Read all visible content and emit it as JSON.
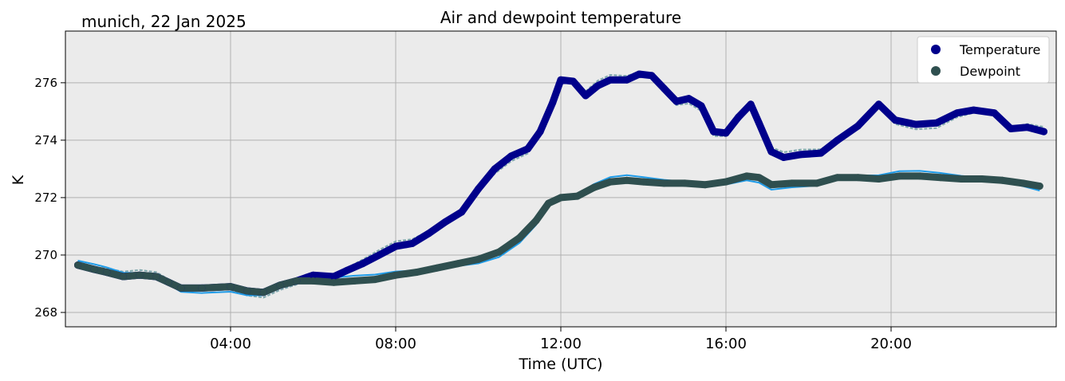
{
  "header": {
    "location_date": "munich, 22 Jan 2025"
  },
  "chart_data": {
    "type": "line",
    "title": "Air and dewpoint temperature",
    "xlabel": "Time (UTC)",
    "ylabel": "K",
    "xlim_hours": [
      0,
      24
    ],
    "ylim": [
      267.5,
      277.8
    ],
    "x_ticks": [
      {
        "hour": 4,
        "label": "04:00"
      },
      {
        "hour": 8,
        "label": "08:00"
      },
      {
        "hour": 12,
        "label": "12:00"
      },
      {
        "hour": 16,
        "label": "16:00"
      },
      {
        "hour": 20,
        "label": "20:00"
      }
    ],
    "y_ticks": [
      268,
      270,
      272,
      274,
      276
    ],
    "grid": true,
    "legend_position": "top-right",
    "legend": [
      {
        "label": "Temperature",
        "color": "#00008b",
        "marker": "circle"
      },
      {
        "label": "Dewpoint",
        "color": "#2f4f4f",
        "marker": "circle"
      }
    ],
    "series": [
      {
        "name": "Temperature",
        "color": "#00008b",
        "raw_color": "#7fa8ad",
        "points": [
          [
            0.3,
            269.65
          ],
          [
            0.7,
            269.5
          ],
          [
            1.0,
            269.4
          ],
          [
            1.4,
            269.25
          ],
          [
            1.8,
            269.3
          ],
          [
            2.2,
            269.25
          ],
          [
            2.5,
            269.05
          ],
          [
            2.8,
            268.85
          ],
          [
            3.3,
            268.85
          ],
          [
            4.0,
            268.9
          ],
          [
            4.4,
            268.75
          ],
          [
            4.8,
            268.7
          ],
          [
            5.2,
            268.95
          ],
          [
            5.6,
            269.1
          ],
          [
            6.0,
            269.3
          ],
          [
            6.5,
            269.25
          ],
          [
            6.8,
            269.45
          ],
          [
            7.2,
            269.7
          ],
          [
            7.6,
            270.0
          ],
          [
            8.0,
            270.3
          ],
          [
            8.4,
            270.4
          ],
          [
            8.8,
            270.75
          ],
          [
            9.2,
            271.15
          ],
          [
            9.6,
            271.5
          ],
          [
            10.0,
            272.3
          ],
          [
            10.4,
            273.0
          ],
          [
            10.8,
            273.45
          ],
          [
            11.2,
            273.7
          ],
          [
            11.5,
            274.3
          ],
          [
            11.8,
            275.3
          ],
          [
            12.0,
            276.1
          ],
          [
            12.3,
            276.05
          ],
          [
            12.6,
            275.55
          ],
          [
            12.9,
            275.9
          ],
          [
            13.2,
            276.1
          ],
          [
            13.6,
            276.1
          ],
          [
            13.9,
            276.3
          ],
          [
            14.2,
            276.25
          ],
          [
            14.5,
            275.8
          ],
          [
            14.8,
            275.35
          ],
          [
            15.1,
            275.45
          ],
          [
            15.4,
            275.2
          ],
          [
            15.7,
            274.3
          ],
          [
            16.0,
            274.25
          ],
          [
            16.3,
            274.8
          ],
          [
            16.6,
            275.25
          ],
          [
            16.8,
            274.6
          ],
          [
            17.1,
            273.6
          ],
          [
            17.4,
            273.4
          ],
          [
            17.8,
            273.5
          ],
          [
            18.3,
            273.55
          ],
          [
            18.7,
            274.0
          ],
          [
            19.2,
            274.5
          ],
          [
            19.7,
            275.25
          ],
          [
            20.1,
            274.7
          ],
          [
            20.6,
            274.55
          ],
          [
            21.1,
            274.6
          ],
          [
            21.6,
            274.95
          ],
          [
            22.0,
            275.05
          ],
          [
            22.5,
            274.95
          ],
          [
            22.9,
            274.4
          ],
          [
            23.3,
            274.45
          ],
          [
            23.7,
            274.3
          ]
        ]
      },
      {
        "name": "Dewpoint",
        "color": "#2f4f4f",
        "raw_color": "#1e9be8",
        "points": [
          [
            0.3,
            269.65
          ],
          [
            0.7,
            269.5
          ],
          [
            1.0,
            269.4
          ],
          [
            1.4,
            269.25
          ],
          [
            1.8,
            269.3
          ],
          [
            2.2,
            269.25
          ],
          [
            2.5,
            269.05
          ],
          [
            2.8,
            268.85
          ],
          [
            3.3,
            268.85
          ],
          [
            4.0,
            268.9
          ],
          [
            4.4,
            268.75
          ],
          [
            4.8,
            268.7
          ],
          [
            5.2,
            268.95
          ],
          [
            5.6,
            269.1
          ],
          [
            6.0,
            269.1
          ],
          [
            6.5,
            269.05
          ],
          [
            7.0,
            269.1
          ],
          [
            7.5,
            269.15
          ],
          [
            8.0,
            269.3
          ],
          [
            8.5,
            269.4
          ],
          [
            9.0,
            269.55
          ],
          [
            9.5,
            269.7
          ],
          [
            10.0,
            269.85
          ],
          [
            10.5,
            270.1
          ],
          [
            11.0,
            270.6
          ],
          [
            11.4,
            271.2
          ],
          [
            11.7,
            271.8
          ],
          [
            12.0,
            272.0
          ],
          [
            12.4,
            272.05
          ],
          [
            12.8,
            272.35
          ],
          [
            13.2,
            272.55
          ],
          [
            13.6,
            272.6
          ],
          [
            14.0,
            272.55
          ],
          [
            14.5,
            272.5
          ],
          [
            15.0,
            272.5
          ],
          [
            15.5,
            272.45
          ],
          [
            16.0,
            272.55
          ],
          [
            16.5,
            272.75
          ],
          [
            16.8,
            272.7
          ],
          [
            17.1,
            272.45
          ],
          [
            17.6,
            272.5
          ],
          [
            18.2,
            272.5
          ],
          [
            18.7,
            272.7
          ],
          [
            19.2,
            272.7
          ],
          [
            19.7,
            272.65
          ],
          [
            20.2,
            272.75
          ],
          [
            20.7,
            272.75
          ],
          [
            21.2,
            272.7
          ],
          [
            21.7,
            272.65
          ],
          [
            22.2,
            272.65
          ],
          [
            22.7,
            272.6
          ],
          [
            23.2,
            272.5
          ],
          [
            23.6,
            272.4
          ]
        ]
      }
    ]
  }
}
